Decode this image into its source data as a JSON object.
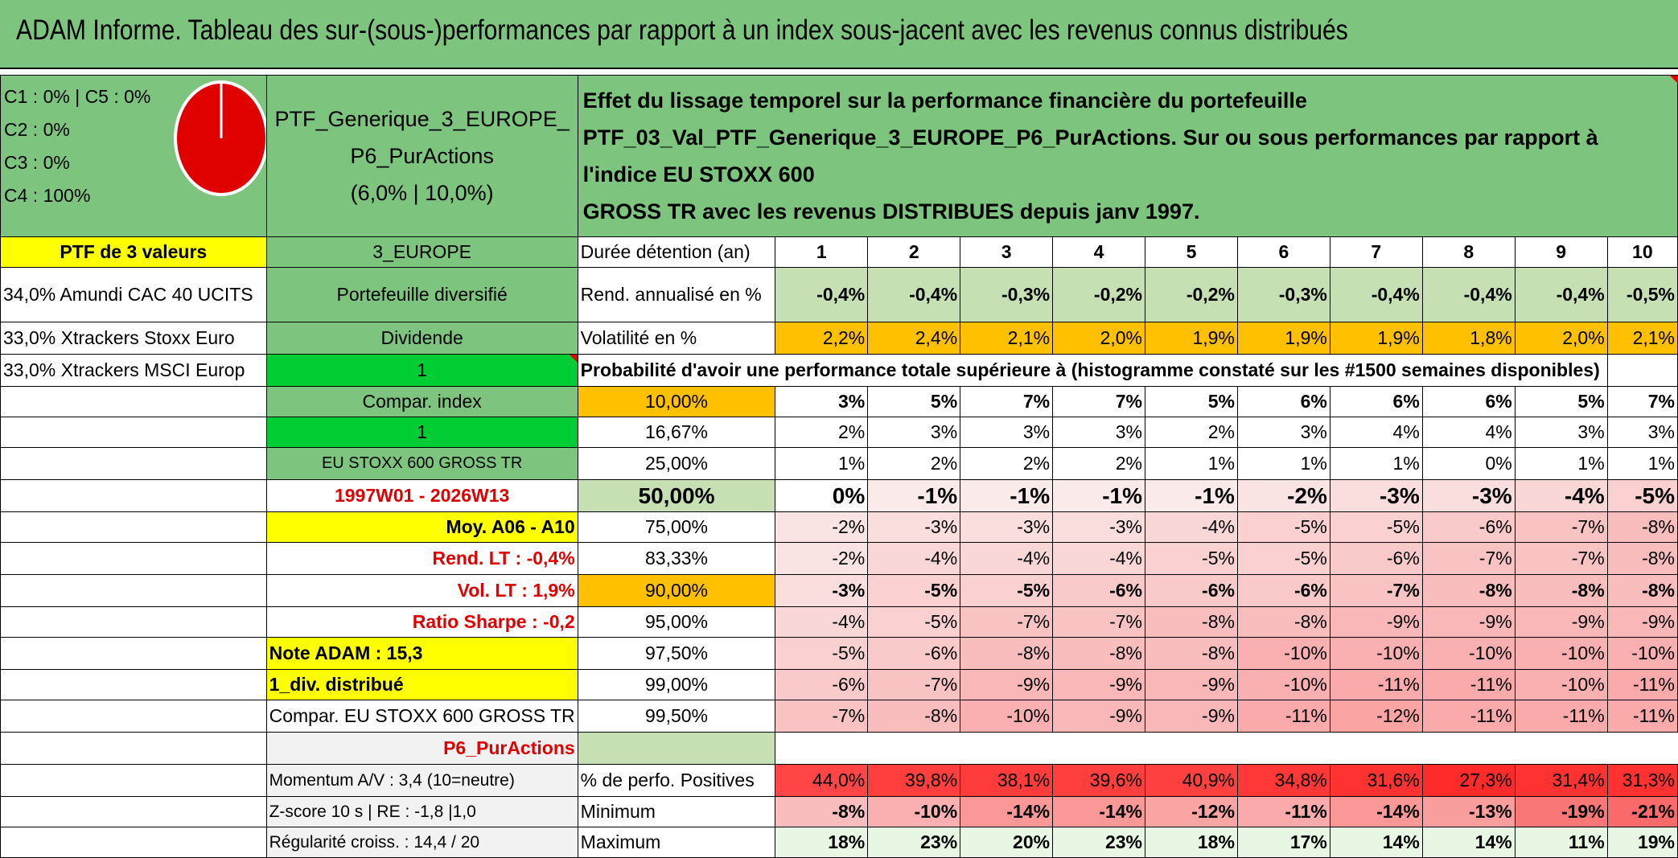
{
  "title": "ADAM Informe. Tableau des sur-(sous-)performances par rapport à un index sous-jacent avec les revenus connus distribués",
  "legend": [
    "C1 : 0% | C5 : 0%",
    "C2 : 0%",
    "C3 : 0%",
    "C4 : 100%"
  ],
  "ptf_name_lines": [
    "PTF_Generique_3_EUROPE_",
    "P6_PurActions",
    "(6,0% | 10,0%)"
  ],
  "description_lines": [
    "Effet du lissage temporel sur la performance financière du portefeuille",
    "PTF_03_Val_PTF_Generique_3_EUROPE_P6_PurActions. Sur ou sous performances par rapport à l'indice EU STOXX 600",
    "GROSS TR avec les revenus DISTRIBUES depuis janv 1997."
  ],
  "colors": {
    "green": "#7dc57e",
    "light_green": "#c6e0b4",
    "bright_green": "#00cc33",
    "yellow": "#ffff00",
    "orange": "#ffc000",
    "red": "#e00000"
  },
  "left_col": [
    "PTF de 3 valeurs",
    "34,0% Amundi CAC 40 UCITS",
    "33,0% Xtrackers Stoxx Euro",
    "33,0% Xtrackers MSCI Europ"
  ],
  "mid_col": [
    "3_EUROPE",
    "Portefeuille diversifié",
    "Dividende",
    "1",
    "Compar. index",
    "1",
    "EU STOXX 600 GROSS TR",
    "1997W01 - 2026W13",
    "Moy. A06 - A10",
    "Rend. LT : -0,4%",
    "Vol. LT : 1,9%",
    "Ratio Sharpe : -0,2",
    "Note ADAM : 15,3",
    "1_div. distribué",
    "Compar. EU STOXX 600 GROSS TR",
    "P6_PurActions",
    "Momentum A/V : 3,4 (10=neutre)",
    "Z-score 10 s | RE : -1,8 |1,0",
    "Régularité croiss. : 14,4 / 20"
  ],
  "header_label": "Durée détention (an)",
  "years": [
    "1",
    "2",
    "3",
    "4",
    "5",
    "6",
    "7",
    "8",
    "9",
    "10"
  ],
  "rend_label": "Rend. annualisé en %",
  "rend": [
    "-0,4%",
    "-0,4%",
    "-0,3%",
    "-0,2%",
    "-0,2%",
    "-0,3%",
    "-0,4%",
    "-0,4%",
    "-0,4%",
    "-0,5%"
  ],
  "vol_label": "Volatilité en %",
  "vol": [
    "2,2%",
    "2,4%",
    "2,1%",
    "2,0%",
    "1,9%",
    "1,9%",
    "1,9%",
    "1,8%",
    "2,0%",
    "2,1%"
  ],
  "proba_label": "Probabilité d'avoir une performance totale supérieure à (histogramme constaté sur les #1500 semaines disponibles)",
  "quantile_rows": [
    {
      "q": "10,00%",
      "v": [
        "3%",
        "5%",
        "7%",
        "7%",
        "5%",
        "6%",
        "6%",
        "6%",
        "5%",
        "7%"
      ]
    },
    {
      "q": "16,67%",
      "v": [
        "2%",
        "3%",
        "3%",
        "3%",
        "2%",
        "3%",
        "4%",
        "4%",
        "3%",
        "3%"
      ]
    },
    {
      "q": "25,00%",
      "v": [
        "1%",
        "2%",
        "2%",
        "2%",
        "1%",
        "1%",
        "1%",
        "0%",
        "1%",
        "1%"
      ]
    },
    {
      "q": "50,00%",
      "v": [
        "0%",
        "-1%",
        "-1%",
        "-1%",
        "-1%",
        "-2%",
        "-3%",
        "-3%",
        "-4%",
        "-5%"
      ]
    },
    {
      "q": "75,00%",
      "v": [
        "-2%",
        "-3%",
        "-3%",
        "-3%",
        "-4%",
        "-5%",
        "-5%",
        "-6%",
        "-7%",
        "-8%"
      ]
    },
    {
      "q": "83,33%",
      "v": [
        "-2%",
        "-4%",
        "-4%",
        "-4%",
        "-5%",
        "-5%",
        "-6%",
        "-7%",
        "-7%",
        "-8%"
      ]
    },
    {
      "q": "90,00%",
      "v": [
        "-3%",
        "-5%",
        "-5%",
        "-6%",
        "-6%",
        "-6%",
        "-7%",
        "-8%",
        "-8%",
        "-8%"
      ]
    },
    {
      "q": "95,00%",
      "v": [
        "-4%",
        "-5%",
        "-7%",
        "-7%",
        "-8%",
        "-8%",
        "-9%",
        "-9%",
        "-9%",
        "-9%"
      ]
    },
    {
      "q": "97,50%",
      "v": [
        "-5%",
        "-6%",
        "-8%",
        "-8%",
        "-8%",
        "-10%",
        "-10%",
        "-10%",
        "-10%",
        "-10%"
      ]
    },
    {
      "q": "99,00%",
      "v": [
        "-6%",
        "-7%",
        "-9%",
        "-9%",
        "-9%",
        "-10%",
        "-11%",
        "-11%",
        "-10%",
        "-11%"
      ]
    },
    {
      "q": "99,50%",
      "v": [
        "-7%",
        "-8%",
        "-10%",
        "-9%",
        "-9%",
        "-11%",
        "-12%",
        "-11%",
        "-11%",
        "-11%"
      ]
    }
  ],
  "pos_label": "% de perfo. Positives",
  "pos": [
    "44,0%",
    "39,8%",
    "38,1%",
    "39,6%",
    "40,9%",
    "34,8%",
    "31,6%",
    "27,3%",
    "31,4%",
    "31,3%"
  ],
  "min_label": "Minimum",
  "min": [
    "-8%",
    "-10%",
    "-14%",
    "-14%",
    "-12%",
    "-11%",
    "-14%",
    "-13%",
    "-19%",
    "-21%"
  ],
  "max_label": "Maximum",
  "max": [
    "18%",
    "23%",
    "20%",
    "23%",
    "18%",
    "17%",
    "14%",
    "14%",
    "11%",
    "19%"
  ]
}
